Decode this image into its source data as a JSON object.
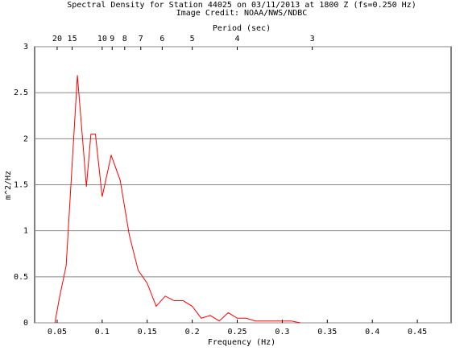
{
  "chart_data": {
    "type": "line",
    "title": "Spectral Density for Station 44025 on 03/11/2013 at 1800 Z (fs=0.250 Hz)",
    "subtitle": "Image Credit: NOAA/NWS/NDBC",
    "x_label": "Frequency (Hz)",
    "y_label": "m^2/Hz",
    "x": [
      0.0475,
      0.0525,
      0.06,
      0.0725,
      0.0825,
      0.0875,
      0.0925,
      0.1,
      0.11,
      0.12,
      0.13,
      0.14,
      0.15,
      0.16,
      0.17,
      0.18,
      0.19,
      0.2,
      0.21,
      0.22,
      0.23,
      0.24,
      0.25,
      0.26,
      0.27,
      0.28,
      0.29,
      0.3,
      0.31,
      0.32
    ],
    "series": [
      {
        "name": "Spectral density",
        "color": "#ff0000",
        "values": [
          0,
          0.27,
          0.62,
          2.69,
          1.48,
          2.05,
          2.05,
          1.37,
          1.82,
          1.55,
          0.96,
          0.57,
          0.43,
          0.18,
          0.29,
          0.24,
          0.24,
          0.18,
          0.05,
          0.08,
          0.02,
          0.11,
          0.05,
          0.05,
          0.02,
          0.02,
          0.02,
          0.02,
          0.02,
          0
        ]
      }
    ],
    "xlim": [
      0.025,
      0.4875
    ],
    "xticks": [
      0.05,
      0.1,
      0.15,
      0.2,
      0.25,
      0.3,
      0.35,
      0.4,
      0.45
    ],
    "ylim": [
      0,
      3
    ],
    "yticks": [
      0,
      0.5,
      1,
      1.5,
      2,
      2.5,
      3
    ],
    "grid": true,
    "top_axis": {
      "label": "Period (sec)",
      "reciprocal": true,
      "ticks": [
        20,
        15,
        10,
        9,
        8,
        7,
        6,
        5,
        4,
        3
      ]
    }
  }
}
